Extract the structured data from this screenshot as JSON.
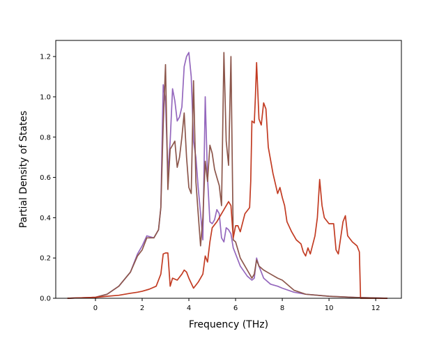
{
  "chart_data": {
    "type": "line",
    "title": "",
    "xlabel": "Frequency (THz)",
    "ylabel": "Partial Density of States",
    "xlim": [
      -1.7,
      13.1
    ],
    "ylim": [
      0.0,
      1.28
    ],
    "xticks": [
      0,
      2,
      4,
      6,
      8,
      10,
      12
    ],
    "xtick_labels": [
      "0",
      "2",
      "4",
      "6",
      "8",
      "10",
      "12"
    ],
    "yticks": [
      0.0,
      0.2,
      0.4,
      0.6,
      0.8,
      1.0,
      1.2
    ],
    "ytick_labels": [
      "0.0",
      "0.2",
      "0.4",
      "0.6",
      "0.8",
      "1.0",
      "1.2"
    ],
    "grid": false,
    "legend": "none",
    "series": [
      {
        "color": "#9467bd",
        "x": [
          -1.2,
          0.0,
          0.5,
          1.0,
          1.5,
          1.8,
          2.0,
          2.2,
          2.5,
          2.7,
          2.8,
          2.9,
          3.0,
          3.1,
          3.2,
          3.3,
          3.4,
          3.5,
          3.6,
          3.7,
          3.8,
          3.9,
          4.0,
          4.1,
          4.2,
          4.3,
          4.4,
          4.5,
          4.6,
          4.7,
          4.8,
          4.9,
          5.0,
          5.1,
          5.2,
          5.3,
          5.4,
          5.5,
          5.6,
          5.7,
          5.8,
          5.9,
          6.0,
          6.2,
          6.5,
          6.7,
          6.8,
          6.9,
          7.0,
          7.2,
          7.5,
          7.8,
          8.0,
          8.5,
          9.0,
          10.0,
          11.0,
          12.5
        ],
        "y": [
          0.0,
          0.005,
          0.02,
          0.06,
          0.13,
          0.22,
          0.26,
          0.31,
          0.3,
          0.34,
          0.45,
          1.06,
          0.98,
          0.62,
          0.78,
          1.04,
          0.98,
          0.88,
          0.9,
          0.95,
          1.15,
          1.2,
          1.22,
          1.1,
          0.78,
          0.7,
          0.55,
          0.42,
          0.29,
          1.0,
          0.6,
          0.38,
          0.37,
          0.39,
          0.44,
          0.42,
          0.3,
          0.28,
          0.35,
          0.34,
          0.32,
          0.25,
          0.22,
          0.16,
          0.11,
          0.09,
          0.1,
          0.2,
          0.16,
          0.1,
          0.07,
          0.06,
          0.05,
          0.03,
          0.02,
          0.01,
          0.005,
          0.0
        ]
      },
      {
        "color": "#8c564b",
        "x": [
          -1.2,
          0.0,
          0.5,
          1.0,
          1.5,
          1.8,
          2.0,
          2.2,
          2.5,
          2.7,
          2.8,
          2.9,
          3.0,
          3.1,
          3.2,
          3.3,
          3.4,
          3.5,
          3.6,
          3.7,
          3.8,
          3.9,
          4.0,
          4.1,
          4.2,
          4.3,
          4.4,
          4.5,
          4.6,
          4.7,
          4.8,
          4.9,
          5.0,
          5.1,
          5.2,
          5.3,
          5.4,
          5.5,
          5.6,
          5.7,
          5.8,
          5.9,
          6.0,
          6.2,
          6.5,
          6.7,
          6.8,
          6.9,
          7.0,
          7.2,
          7.5,
          7.8,
          8.0,
          8.5,
          9.0,
          10.0,
          11.0,
          12.5
        ],
        "y": [
          0.0,
          0.005,
          0.02,
          0.06,
          0.13,
          0.21,
          0.24,
          0.3,
          0.3,
          0.34,
          0.45,
          0.86,
          1.16,
          0.54,
          0.74,
          0.76,
          0.78,
          0.65,
          0.7,
          0.8,
          0.92,
          0.7,
          0.55,
          0.52,
          1.08,
          0.58,
          0.42,
          0.26,
          0.4,
          0.68,
          0.58,
          0.76,
          0.72,
          0.64,
          0.6,
          0.56,
          0.46,
          1.22,
          0.78,
          0.66,
          1.2,
          0.29,
          0.28,
          0.2,
          0.14,
          0.1,
          0.12,
          0.19,
          0.16,
          0.14,
          0.12,
          0.1,
          0.09,
          0.04,
          0.02,
          0.01,
          0.005,
          0.0
        ]
      },
      {
        "color": "#c23b22",
        "x": [
          -1.2,
          0.0,
          0.5,
          1.0,
          1.5,
          1.8,
          2.0,
          2.3,
          2.6,
          2.8,
          2.9,
          3.0,
          3.1,
          3.2,
          3.3,
          3.5,
          3.7,
          3.8,
          3.9,
          4.0,
          4.2,
          4.4,
          4.6,
          4.7,
          4.8,
          4.9,
          5.0,
          5.2,
          5.5,
          5.7,
          5.8,
          5.9,
          6.0,
          6.1,
          6.2,
          6.4,
          6.6,
          6.65,
          6.7,
          6.8,
          6.85,
          6.9,
          7.0,
          7.1,
          7.2,
          7.3,
          7.4,
          7.6,
          7.8,
          7.9,
          8.0,
          8.1,
          8.2,
          8.4,
          8.6,
          8.8,
          8.9,
          9.0,
          9.1,
          9.2,
          9.4,
          9.5,
          9.6,
          9.7,
          9.8,
          10.0,
          10.1,
          10.2,
          10.3,
          10.4,
          10.6,
          10.7,
          10.8,
          11.0,
          11.2,
          11.3,
          11.35,
          12.5
        ],
        "y": [
          0.0,
          0.005,
          0.01,
          0.015,
          0.025,
          0.03,
          0.035,
          0.045,
          0.06,
          0.12,
          0.22,
          0.225,
          0.225,
          0.06,
          0.1,
          0.09,
          0.12,
          0.14,
          0.13,
          0.1,
          0.05,
          0.08,
          0.12,
          0.21,
          0.18,
          0.28,
          0.35,
          0.38,
          0.44,
          0.48,
          0.46,
          0.3,
          0.36,
          0.36,
          0.33,
          0.42,
          0.45,
          0.58,
          0.88,
          0.87,
          1.0,
          1.17,
          0.89,
          0.86,
          0.97,
          0.94,
          0.75,
          0.62,
          0.52,
          0.55,
          0.5,
          0.46,
          0.38,
          0.33,
          0.29,
          0.27,
          0.23,
          0.21,
          0.25,
          0.22,
          0.31,
          0.4,
          0.59,
          0.46,
          0.4,
          0.37,
          0.37,
          0.37,
          0.24,
          0.22,
          0.38,
          0.41,
          0.31,
          0.28,
          0.26,
          0.23,
          0.0,
          0.0
        ]
      }
    ]
  }
}
